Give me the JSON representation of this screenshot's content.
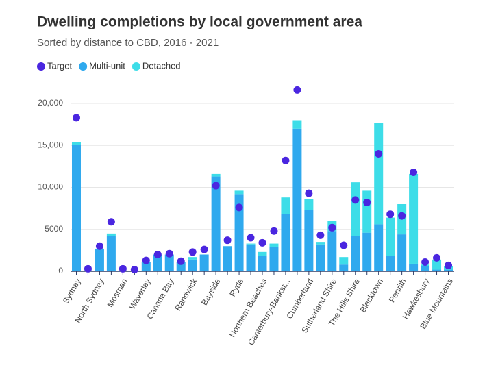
{
  "chart_data": {
    "type": "bar",
    "stacked": true,
    "title": "Dwelling completions by local government area",
    "subtitle": "Sorted by distance to CBD, 2016 - 2021",
    "categories": [
      "Sydney",
      null,
      "North Sydney",
      null,
      "Mosman",
      null,
      "Waverley",
      null,
      "Canada Bay",
      null,
      "Randwick",
      null,
      "Bayside",
      null,
      "Ryde",
      null,
      "Northern Beaches",
      null,
      "Canterbury-Bankst...",
      null,
      "Cumberland",
      null,
      "Sutherland Shire",
      null,
      "The Hills Shire",
      null,
      "Blacktown",
      null,
      "Penrith",
      null,
      "Hawkesbury",
      null,
      "Blue Mountains"
    ],
    "series": [
      {
        "name": "Target",
        "type": "scatter",
        "color": "#4a26e0",
        "values": [
          18300,
          300,
          3000,
          5900,
          300,
          200,
          1300,
          2000,
          2100,
          1200,
          2300,
          2600,
          10200,
          3700,
          7600,
          4000,
          3400,
          4800,
          13200,
          21600,
          9300,
          4300,
          5200,
          3100,
          8500,
          8200,
          14000,
          6800,
          6600,
          11800,
          1100,
          1600,
          700
        ]
      },
      {
        "name": "Multi-unit",
        "type": "bar",
        "color": "#2fa9ee",
        "values": [
          15100,
          100,
          2700,
          4200,
          100,
          50,
          1100,
          2000,
          2000,
          1100,
          1400,
          2000,
          11300,
          3000,
          9200,
          3200,
          1800,
          2900,
          6800,
          17000,
          7300,
          3200,
          4800,
          800,
          4200,
          4600,
          5600,
          1800,
          4400,
          900,
          600,
          200,
          200
        ]
      },
      {
        "name": "Detached",
        "type": "bar",
        "color": "#3ddde8",
        "values": [
          250,
          0,
          0,
          300,
          0,
          0,
          0,
          0,
          0,
          0,
          300,
          0,
          300,
          0,
          400,
          100,
          500,
          400,
          2000,
          1000,
          1300,
          300,
          1200,
          900,
          6400,
          5000,
          12100,
          4600,
          3600,
          10700,
          200,
          1200,
          400
        ]
      }
    ],
    "ylim": [
      0,
      22000
    ],
    "yticks": [
      0,
      5000,
      {
        "value": 10000,
        "label": "10,000"
      },
      {
        "value": 15000,
        "label": "15,000"
      },
      {
        "value": 20000,
        "label": "20,000"
      }
    ],
    "grid": true
  }
}
